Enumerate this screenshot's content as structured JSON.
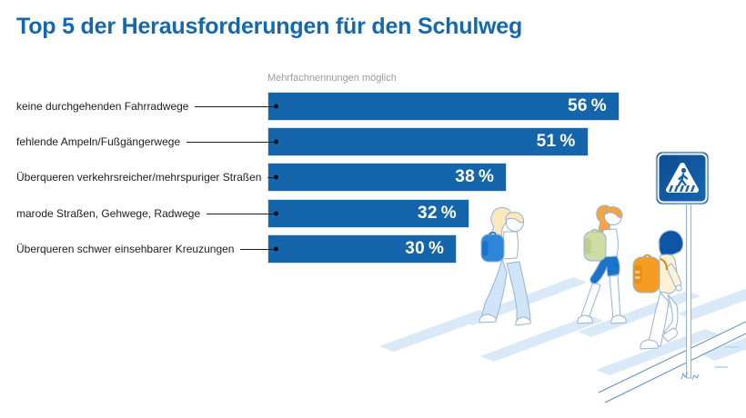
{
  "title": "Top 5 der Herausforderungen für den Schulweg",
  "note": "Mehrfachnennungen möglich",
  "chart_data": {
    "type": "bar",
    "orientation": "horizontal",
    "title": "Top 5 der Herausforderungen für den Schulweg",
    "note": "Mehrfachnennungen möglich",
    "categories": [
      "keine durchgehenden Fahrradwege",
      "fehlende Ampeln/Fußgängerwege",
      "Überqueren verkehrsreicher/mehrspuriger Straßen",
      "marode Straßen, Gehwege, Radwege",
      "Überqueren schwer einsehbarer Kreuzungen"
    ],
    "values": [
      56,
      51,
      38,
      32,
      30
    ],
    "value_labels": [
      "56 %",
      "51 %",
      "38 %",
      "32 %",
      "30 %"
    ],
    "unit": "%",
    "xlim": [
      0,
      60
    ],
    "grid": false,
    "legend": "none",
    "bar_color": "#1465ab",
    "value_label_color": "#ffffff"
  },
  "colors": {
    "title": "#1368af",
    "bar": "#1465ab",
    "category_label": "#1d1d1b",
    "note": "#9b9b9b",
    "zebra_stripe": "#d9e9f8",
    "outline": "#93b3d8",
    "sign_blue": "#11529f"
  },
  "illustration": {
    "name": "children-crossing-zebra-crossing",
    "figures": [
      "child-blonde-blue-backpack",
      "child-redhead-green-backpack",
      "child-darkhair-orange-backpack"
    ],
    "sign_icon": "pedestrian-crossing-sign"
  }
}
